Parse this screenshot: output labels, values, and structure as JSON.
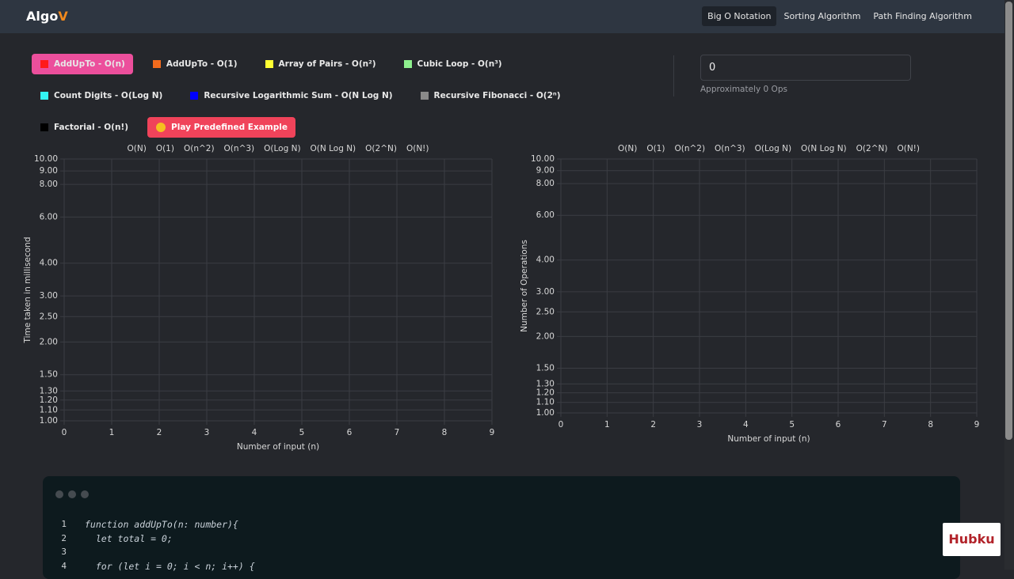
{
  "nav": {
    "brand": "Algo",
    "brand_accent": "V",
    "links": [
      "Big O Notation",
      "Sorting Algorithm",
      "Path Finding Algorithm"
    ],
    "active": 0
  },
  "buttons": [
    {
      "label": "AddUpTo - O(n)",
      "color": "#ff1a1a",
      "active": true
    },
    {
      "label": "AddUpTo - O(1)",
      "color": "#f26b1d"
    },
    {
      "label": "Array of Pairs - O(n²)",
      "color": "#ffff33"
    },
    {
      "label": "Cubic Loop - O(n³)",
      "color": "#8ef08e"
    },
    {
      "label": "Count Digits - O(Log N)",
      "color": "#33f5f5"
    },
    {
      "label": "Recursive Logarithmic Sum - O(N Log N)",
      "color": "#0000ff"
    },
    {
      "label": "Recursive Fibonacci - O(2ⁿ)",
      "color": "#8a8a8a"
    },
    {
      "label": "Factorial - O(n!)",
      "color": "#000000"
    }
  ],
  "play_button": "Play Predefined Example",
  "input": {
    "value": "0",
    "hint": "Approximately 0 Ops"
  },
  "chart_data": [
    {
      "type": "line",
      "ylabel": "Time taken in millisecond",
      "xlabel": "Number of input (n)",
      "legend": "top",
      "grid": true,
      "log_y": true,
      "text_color": "#e3e35c",
      "x": [],
      "series": [
        {
          "name": "O(N)",
          "values": []
        },
        {
          "name": "O(1)",
          "values": []
        },
        {
          "name": "O(n^2)",
          "values": []
        },
        {
          "name": "O(n^3)",
          "values": []
        },
        {
          "name": "O(Log N)",
          "values": []
        },
        {
          "name": "O(N Log N)",
          "values": []
        },
        {
          "name": "O(2^N)",
          "values": []
        },
        {
          "name": "O(N!)",
          "values": []
        }
      ],
      "xlim": [
        0,
        9
      ],
      "xticks": [
        0,
        1,
        2,
        3,
        4,
        5,
        6,
        7,
        8,
        9
      ],
      "ylim": [
        1,
        10
      ],
      "yticks": [
        {
          "value": 1,
          "label": "1.00"
        },
        {
          "value": 1.1,
          "label": "1.10"
        },
        {
          "value": 1.2,
          "label": "1.20"
        },
        {
          "value": 1.3,
          "label": "1.30"
        },
        {
          "value": 1.5,
          "label": "1.50"
        },
        {
          "value": 2,
          "label": "2.00"
        },
        {
          "value": 2.5,
          "label": "2.50"
        },
        {
          "value": 3,
          "label": "3.00"
        },
        {
          "value": 4,
          "label": "4.00"
        },
        {
          "value": 6,
          "label": "6.00"
        },
        {
          "value": 8,
          "label": "8.00"
        },
        {
          "value": 9,
          "label": "9.00"
        },
        {
          "value": 10,
          "label": "10.00"
        }
      ]
    },
    {
      "type": "line",
      "ylabel": "Number of Operations",
      "xlabel": "Number of input (n)",
      "legend": "top",
      "grid": true,
      "log_y": true,
      "text_color": "#dddddd",
      "x": [],
      "series": [
        {
          "name": "O(N)",
          "values": []
        },
        {
          "name": "O(1)",
          "values": []
        },
        {
          "name": "O(n^2)",
          "values": []
        },
        {
          "name": "O(n^3)",
          "values": []
        },
        {
          "name": "O(Log N)",
          "values": []
        },
        {
          "name": "O(N Log N)",
          "values": []
        },
        {
          "name": "O(2^N)",
          "values": []
        },
        {
          "name": "O(N!)",
          "values": []
        }
      ],
      "xlim": [
        0,
        9
      ],
      "xticks": [
        0,
        1,
        2,
        3,
        4,
        5,
        6,
        7,
        8,
        9
      ],
      "ylim": [
        1,
        10
      ],
      "yticks": [
        {
          "value": 1,
          "label": "1.00"
        },
        {
          "value": 1.1,
          "label": "1.10"
        },
        {
          "value": 1.2,
          "label": "1.20"
        },
        {
          "value": 1.3,
          "label": "1.30"
        },
        {
          "value": 1.5,
          "label": "1.50"
        },
        {
          "value": 2,
          "label": "2.00"
        },
        {
          "value": 2.5,
          "label": "2.50"
        },
        {
          "value": 3,
          "label": "3.00"
        },
        {
          "value": 4,
          "label": "4.00"
        },
        {
          "value": 6,
          "label": "6.00"
        },
        {
          "value": 8,
          "label": "8.00"
        },
        {
          "value": 9,
          "label": "9.00"
        },
        {
          "value": 10,
          "label": "10.00"
        }
      ]
    }
  ],
  "code": {
    "lines": [
      {
        "number": 1,
        "text": "function addUpTo(n: number){"
      },
      {
        "number": 2,
        "text": "  let total = 0;"
      },
      {
        "number": 3
      },
      {
        "number": 4,
        "text": "  for (let i = 0; i < n; i++) {"
      }
    ]
  },
  "logo": "Hubku"
}
